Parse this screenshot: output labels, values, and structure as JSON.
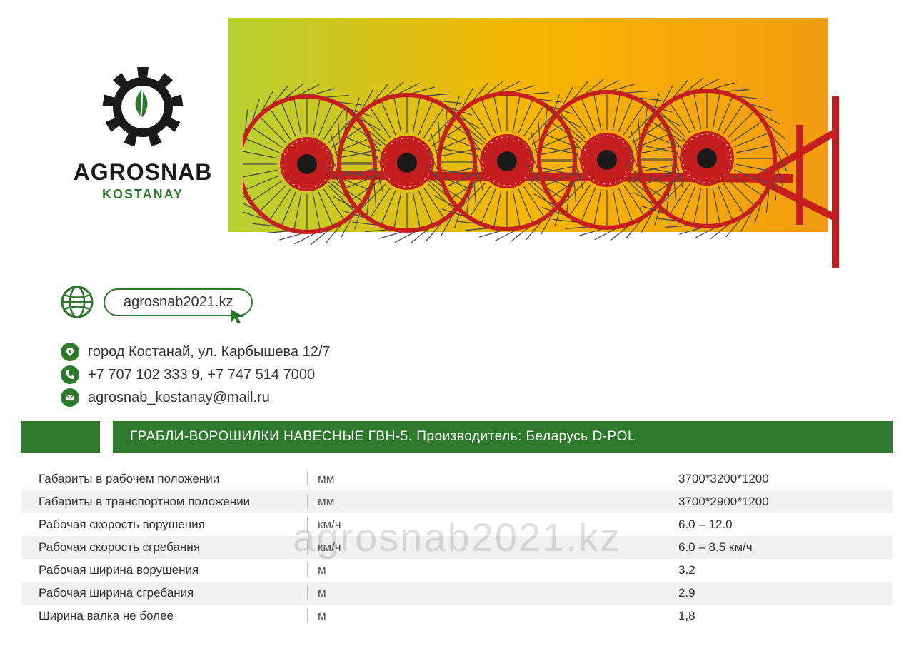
{
  "colors": {
    "brand_green": "#2d7a2d",
    "hero_gradient_start": "#b7d233",
    "hero_gradient_mid": "#f7b500",
    "hero_gradient_end": "#f39c12",
    "row_alt_bg": "#eef3ee",
    "text": "#333333",
    "product_red": "#c41e1e"
  },
  "logo": {
    "title": "AGROSNAB",
    "subtitle": "KOSTANAY"
  },
  "website": "agrosnab2021.kz",
  "contacts": {
    "address": "город Костанай, ул. Карбышева 12/7",
    "phones": "+7 707 102 333 9, +7 747 514 7000",
    "email": "agrosnab_kostanay@mail.ru"
  },
  "product_title": "ГРАБЛИ-ВОРОШИЛКИ НАВЕСНЫЕ ГВН-5. Производитель: Беларусь D-POL",
  "specs": [
    {
      "name": "Габариты в рабочем положении",
      "unit": "мм",
      "value": "3700*3200*1200"
    },
    {
      "name": "Габариты в транспортном положении",
      "unit": "мм",
      "value": "3700*2900*1200"
    },
    {
      "name": "Рабочая скорость ворушения",
      "unit": "км/ч",
      "value": "6.0 – 12.0"
    },
    {
      "name": "Рабочая скорость сгребания",
      "unit": "км/ч",
      "value": "6.0 – 8.5 км/ч"
    },
    {
      "name": "Рабочая ширина ворушения",
      "unit": "м",
      "value": "3.2"
    },
    {
      "name": "Рабочая ширина сгребания",
      "unit": "м",
      "value": "2.9"
    },
    {
      "name": "Ширина валка не более",
      "unit": "м",
      "value": "1,8"
    }
  ],
  "watermark": "agrosnab2021.kz",
  "product_image": {
    "description": "Five-wheel hay rake tedder, red frame with spoked tine wheels",
    "wheel_count": 5,
    "wheel_color": "#c41e1e",
    "tine_color": "#4a4a4a",
    "frame_color": "#c41e1e"
  }
}
